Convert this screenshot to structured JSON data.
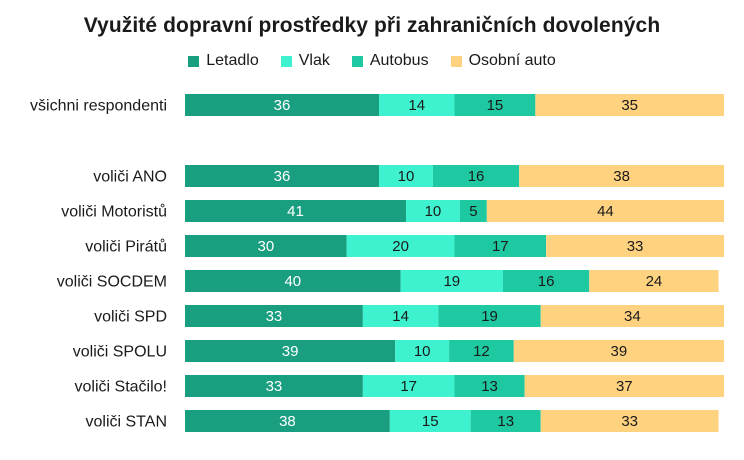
{
  "chart_data": {
    "type": "bar",
    "orientation": "horizontal",
    "stacked": true,
    "title": "Využité dopravní prostředky při zahraničních dovolených",
    "legend_position": "top",
    "categories": [
      "všichni respondenti",
      "voliči ANO",
      "voliči Motoristů",
      "voliči Pirátů",
      "voliči SOCDEM",
      "voliči SPD",
      "voliči SPOLU",
      "voliči Stačilo!",
      "voliči STAN"
    ],
    "series": [
      {
        "name": "Letadlo",
        "color": "#1a9e80",
        "label_color": "#ffffff",
        "values": [
          36,
          36,
          41,
          30,
          40,
          33,
          39,
          33,
          38
        ]
      },
      {
        "name": "Vlak",
        "color": "#3ef2cf",
        "label_color": "#1a1a1a",
        "values": [
          14,
          10,
          10,
          20,
          19,
          14,
          10,
          17,
          15
        ]
      },
      {
        "name": "Autobus",
        "color": "#1ec9a1",
        "label_color": "#1a1a1a",
        "values": [
          15,
          16,
          5,
          17,
          16,
          19,
          12,
          13,
          13
        ]
      },
      {
        "name": "Osobní auto",
        "color": "#ffd280",
        "label_color": "#1a1a1a",
        "values": [
          35,
          38,
          44,
          33,
          24,
          34,
          39,
          37,
          33
        ]
      }
    ],
    "xlim": [
      0,
      100
    ],
    "grid": false
  }
}
